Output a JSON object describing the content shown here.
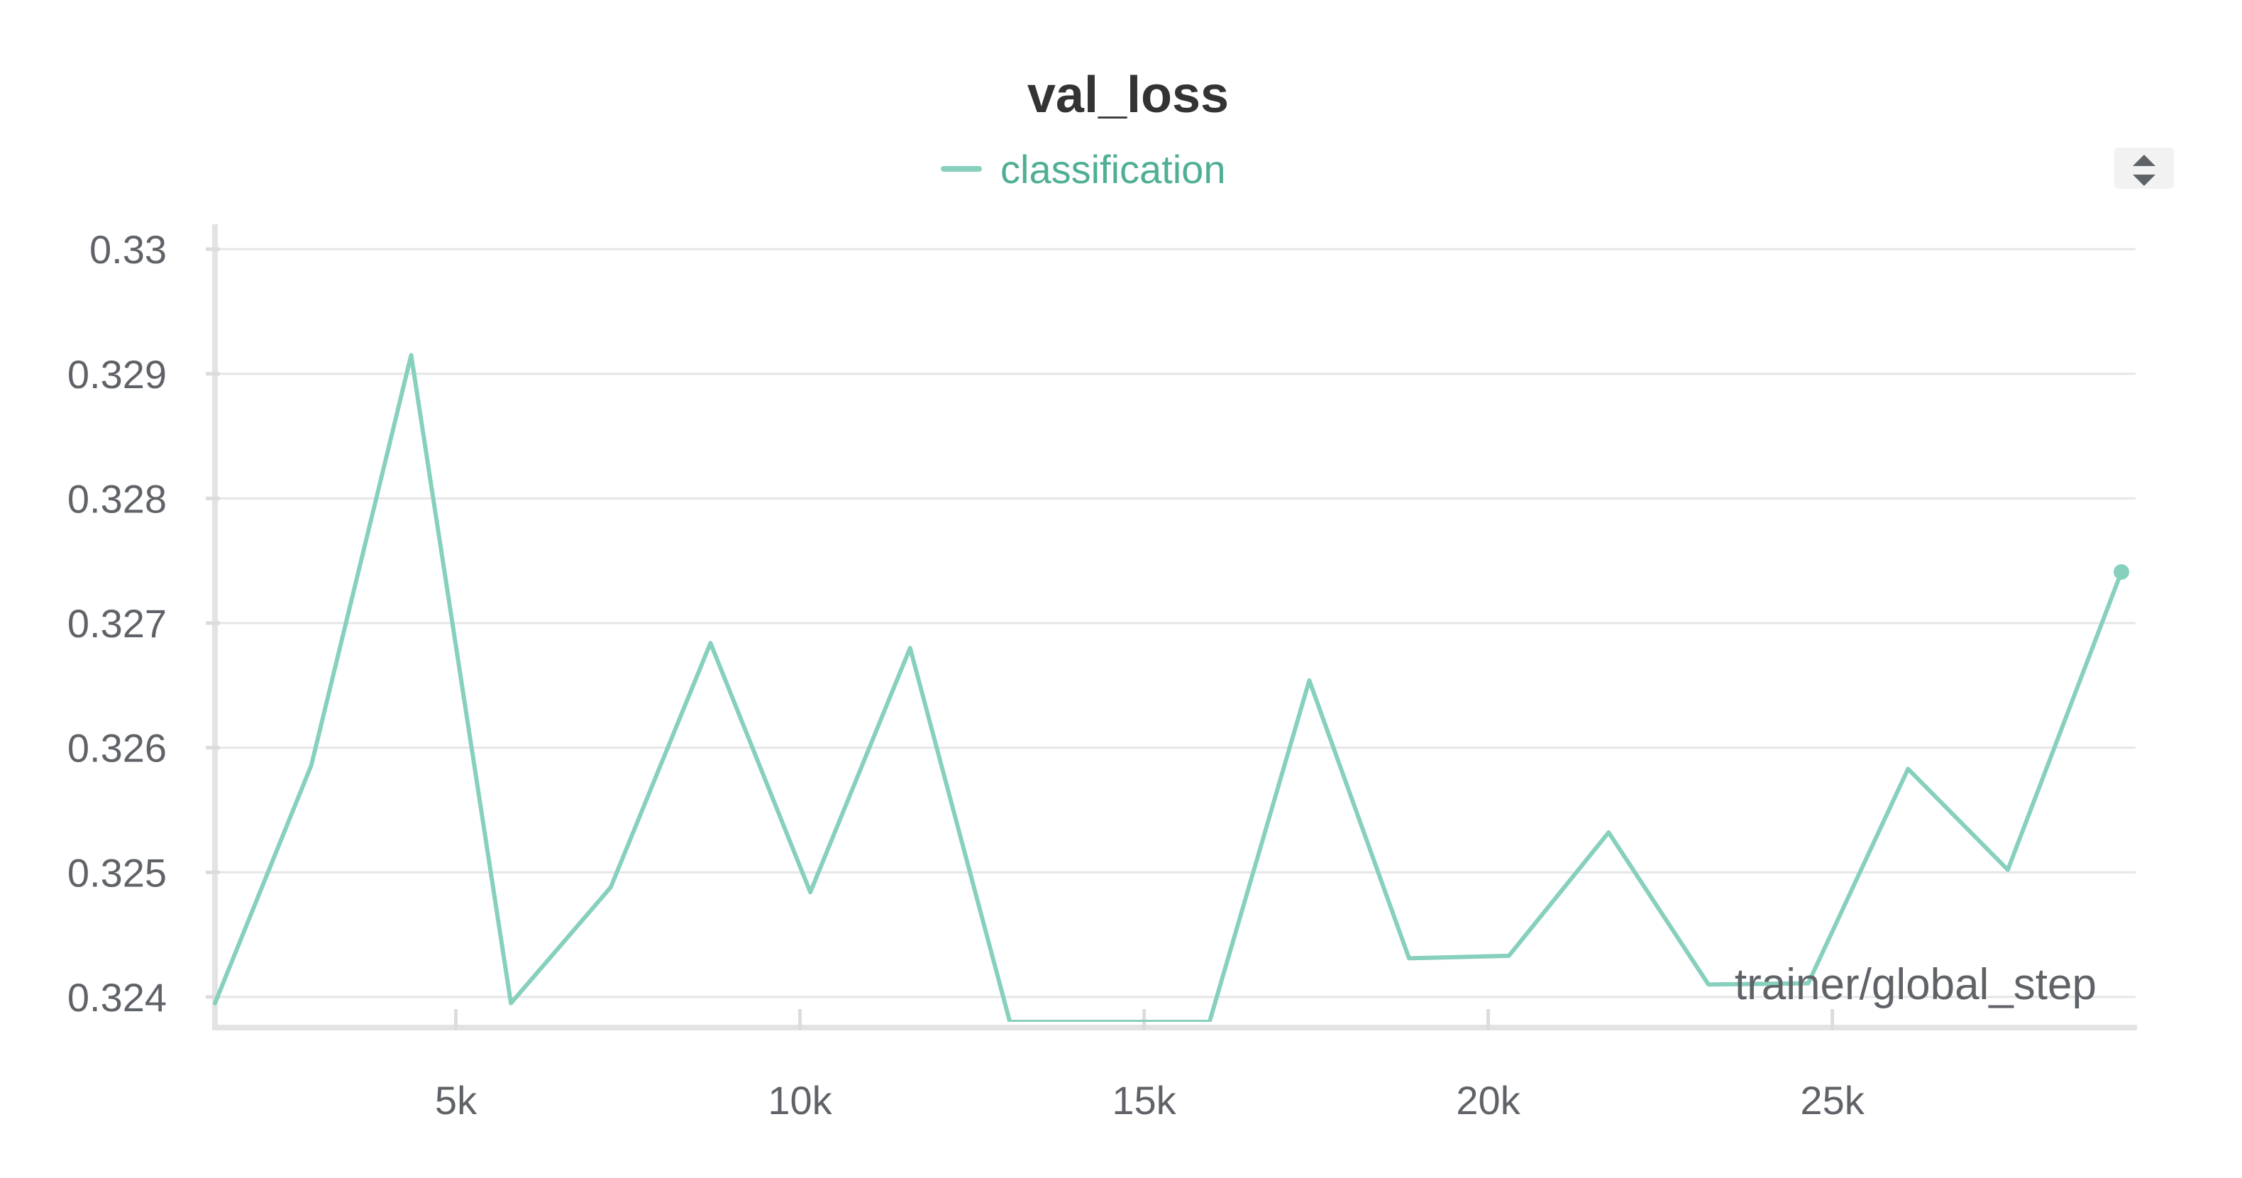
{
  "chart_data": {
    "type": "line",
    "title": "val_loss",
    "xlabel": "trainer/global_step",
    "ylabel": "",
    "xlim": [
      1500,
      29200
    ],
    "ylim": [
      0.3238,
      0.3302
    ],
    "xticks": [
      5000,
      10000,
      15000,
      20000,
      25000
    ],
    "xtick_labels": [
      "5k",
      "10k",
      "15k",
      "20k",
      "25k"
    ],
    "yticks": [
      0.324,
      0.325,
      0.326,
      0.327,
      0.328,
      0.329,
      0.33
    ],
    "ytick_labels": [
      "0.324",
      "0.325",
      "0.326",
      "0.327",
      "0.328",
      "0.329",
      "0.33"
    ],
    "grid": true,
    "legend_position": "top-center",
    "series": [
      {
        "name": "classification",
        "color": "#86d0bd",
        "x": [
          1500,
          2900,
          4350,
          5800,
          7250,
          8700,
          10150,
          11600,
          13050,
          14500,
          15950,
          17400,
          18850,
          20300,
          21750,
          23200,
          24650,
          26100,
          27550,
          29200
        ],
        "y": [
          0.32395,
          0.32586,
          0.32915,
          0.32395,
          0.32488,
          0.32684,
          0.32484,
          0.3268,
          0.3238,
          0.3238,
          0.3238,
          0.32654,
          0.32431,
          0.32433,
          0.32532,
          0.3241,
          0.32411,
          0.32583,
          0.32502,
          0.32741
        ]
      }
    ]
  },
  "controls": {
    "sort_icon": "sort-updown-icon"
  }
}
